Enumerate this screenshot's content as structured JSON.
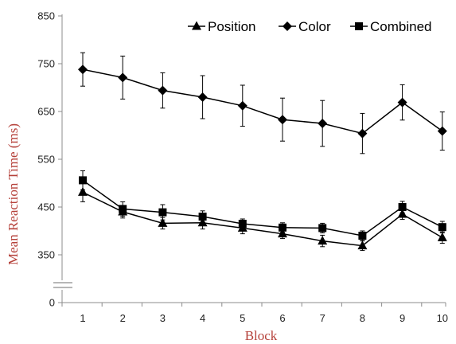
{
  "chart_data": {
    "type": "line",
    "xlabel": "Block",
    "ylabel": "Mean Reaction Time (ms)",
    "categories": [
      "1",
      "2",
      "3",
      "4",
      "5",
      "6",
      "7",
      "8",
      "9",
      "10"
    ],
    "y_ticks": [
      "850",
      "750",
      "650",
      "550",
      "450",
      "350",
      "0"
    ],
    "axis_break": "between 0 and 350",
    "legend_position": "top-right",
    "grid": false,
    "series": [
      {
        "name": "Position",
        "marker": "triangle",
        "values": [
          481,
          440,
          416,
          417,
          406,
          394,
          379,
          369,
          435,
          386
        ],
        "error": [
          20,
          13,
          12,
          13,
          12,
          10,
          12,
          10,
          11,
          12
        ]
      },
      {
        "name": "Color",
        "marker": "diamond",
        "values": [
          738,
          721,
          694,
          680,
          662,
          633,
          625,
          604,
          669,
          609
        ],
        "error": [
          35,
          45,
          37,
          45,
          43,
          45,
          48,
          42,
          37,
          40
        ]
      },
      {
        "name": "Combined",
        "marker": "square",
        "values": [
          506,
          446,
          439,
          430,
          415,
          407,
          406,
          390,
          450,
          408
        ],
        "error": [
          20,
          15,
          16,
          12,
          10,
          10,
          10,
          10,
          12,
          12
        ]
      }
    ]
  }
}
